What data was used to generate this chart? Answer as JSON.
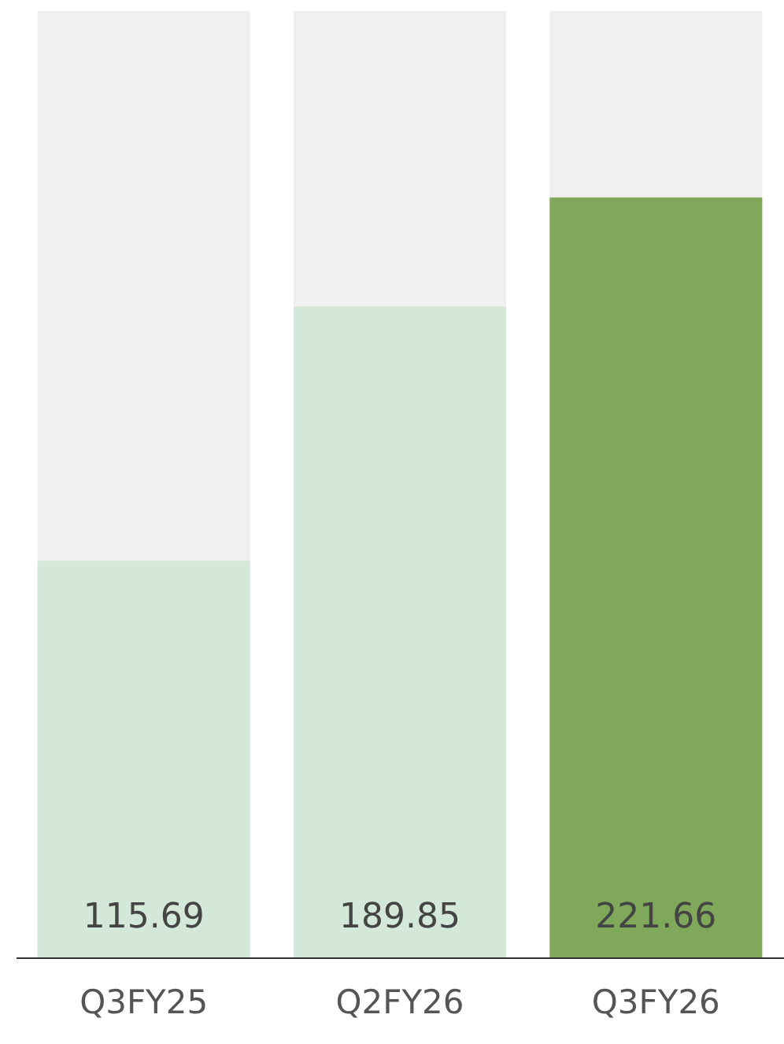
{
  "chart_data": {
    "type": "bar",
    "categories": [
      "Q3FY25",
      "Q2FY26",
      "Q3FY26"
    ],
    "values": [
      115.69,
      189.85,
      221.66
    ],
    "colors": [
      "#d4e8da",
      "#d4e8da",
      "#7fa85a"
    ],
    "ylim": [
      0,
      276
    ],
    "data_labels": true,
    "tick_labels": "x",
    "legend": false
  }
}
